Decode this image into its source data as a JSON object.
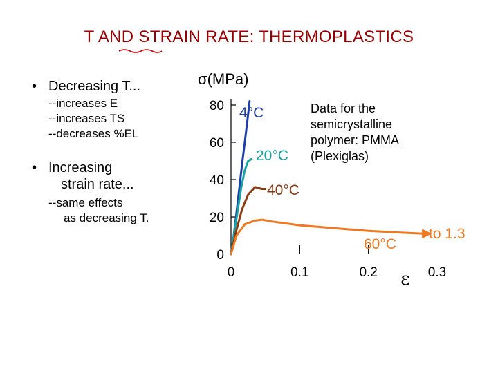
{
  "slide": {
    "title": "T AND STRAIN RATE:  THERMOPLASTICS",
    "bullets": [
      {
        "lines": [
          "Decreasing T..."
        ],
        "subs": [
          "--increases E",
          "--increases TS",
          "--decreases %EL"
        ]
      },
      {
        "lines": [
          "Increasing",
          "strain rate..."
        ],
        "subs": [
          "--same effects",
          "as decreasing T."
        ]
      }
    ]
  },
  "colors": {
    "title": "#990000",
    "squiggle": "#cc0000",
    "axis": "#000000",
    "4C": "#1f3fa8",
    "20C": "#1aa3a3",
    "40C": "#8b3a12",
    "60C": "#f07820"
  },
  "chart_data": {
    "type": "line",
    "xlabel": "ε",
    "ylabel": "σ(MPa)",
    "xlim": [
      0,
      0.3
    ],
    "ylim": [
      0,
      80
    ],
    "x_ticks": [
      0,
      0.1,
      0.2,
      0.3
    ],
    "x_tick_labels": [
      "0",
      "0.1",
      "0.2",
      "0.3"
    ],
    "y_ticks": [
      0,
      20,
      40,
      60,
      80
    ],
    "y_tick_labels": [
      "0",
      "20",
      "40",
      "60",
      "80"
    ],
    "annotation": [
      "Data for the",
      "semicrystalline",
      "polymer: PMMA",
      "(Plexiglas)"
    ],
    "series": [
      {
        "name": "4°C",
        "color_key": "4C",
        "x": [
          0,
          0.004,
          0.008,
          0.012,
          0.016,
          0.02,
          0.024,
          0.027
        ],
        "y": [
          0,
          10,
          22,
          35,
          48,
          60,
          72,
          82
        ]
      },
      {
        "name": "20°C",
        "color_key": "20C",
        "x": [
          0,
          0.005,
          0.01,
          0.015,
          0.02,
          0.025,
          0.03
        ],
        "y": [
          0,
          12,
          24,
          36,
          45,
          50,
          51
        ]
      },
      {
        "name": "40°C",
        "color_key": "40C",
        "x": [
          0,
          0.008,
          0.016,
          0.025,
          0.035,
          0.045,
          0.05
        ],
        "y": [
          0,
          13,
          24,
          32,
          36,
          35,
          35
        ]
      },
      {
        "name": "60°C",
        "color_key": "60C",
        "arrow": true,
        "arrow_label": "to 1.3",
        "x": [
          0,
          0.008,
          0.02,
          0.035,
          0.045,
          0.06,
          0.1,
          0.15,
          0.2,
          0.25,
          0.28
        ],
        "y": [
          0,
          10,
          16,
          18,
          18.5,
          17.5,
          15.5,
          14,
          12.5,
          11.5,
          11
        ]
      }
    ]
  }
}
